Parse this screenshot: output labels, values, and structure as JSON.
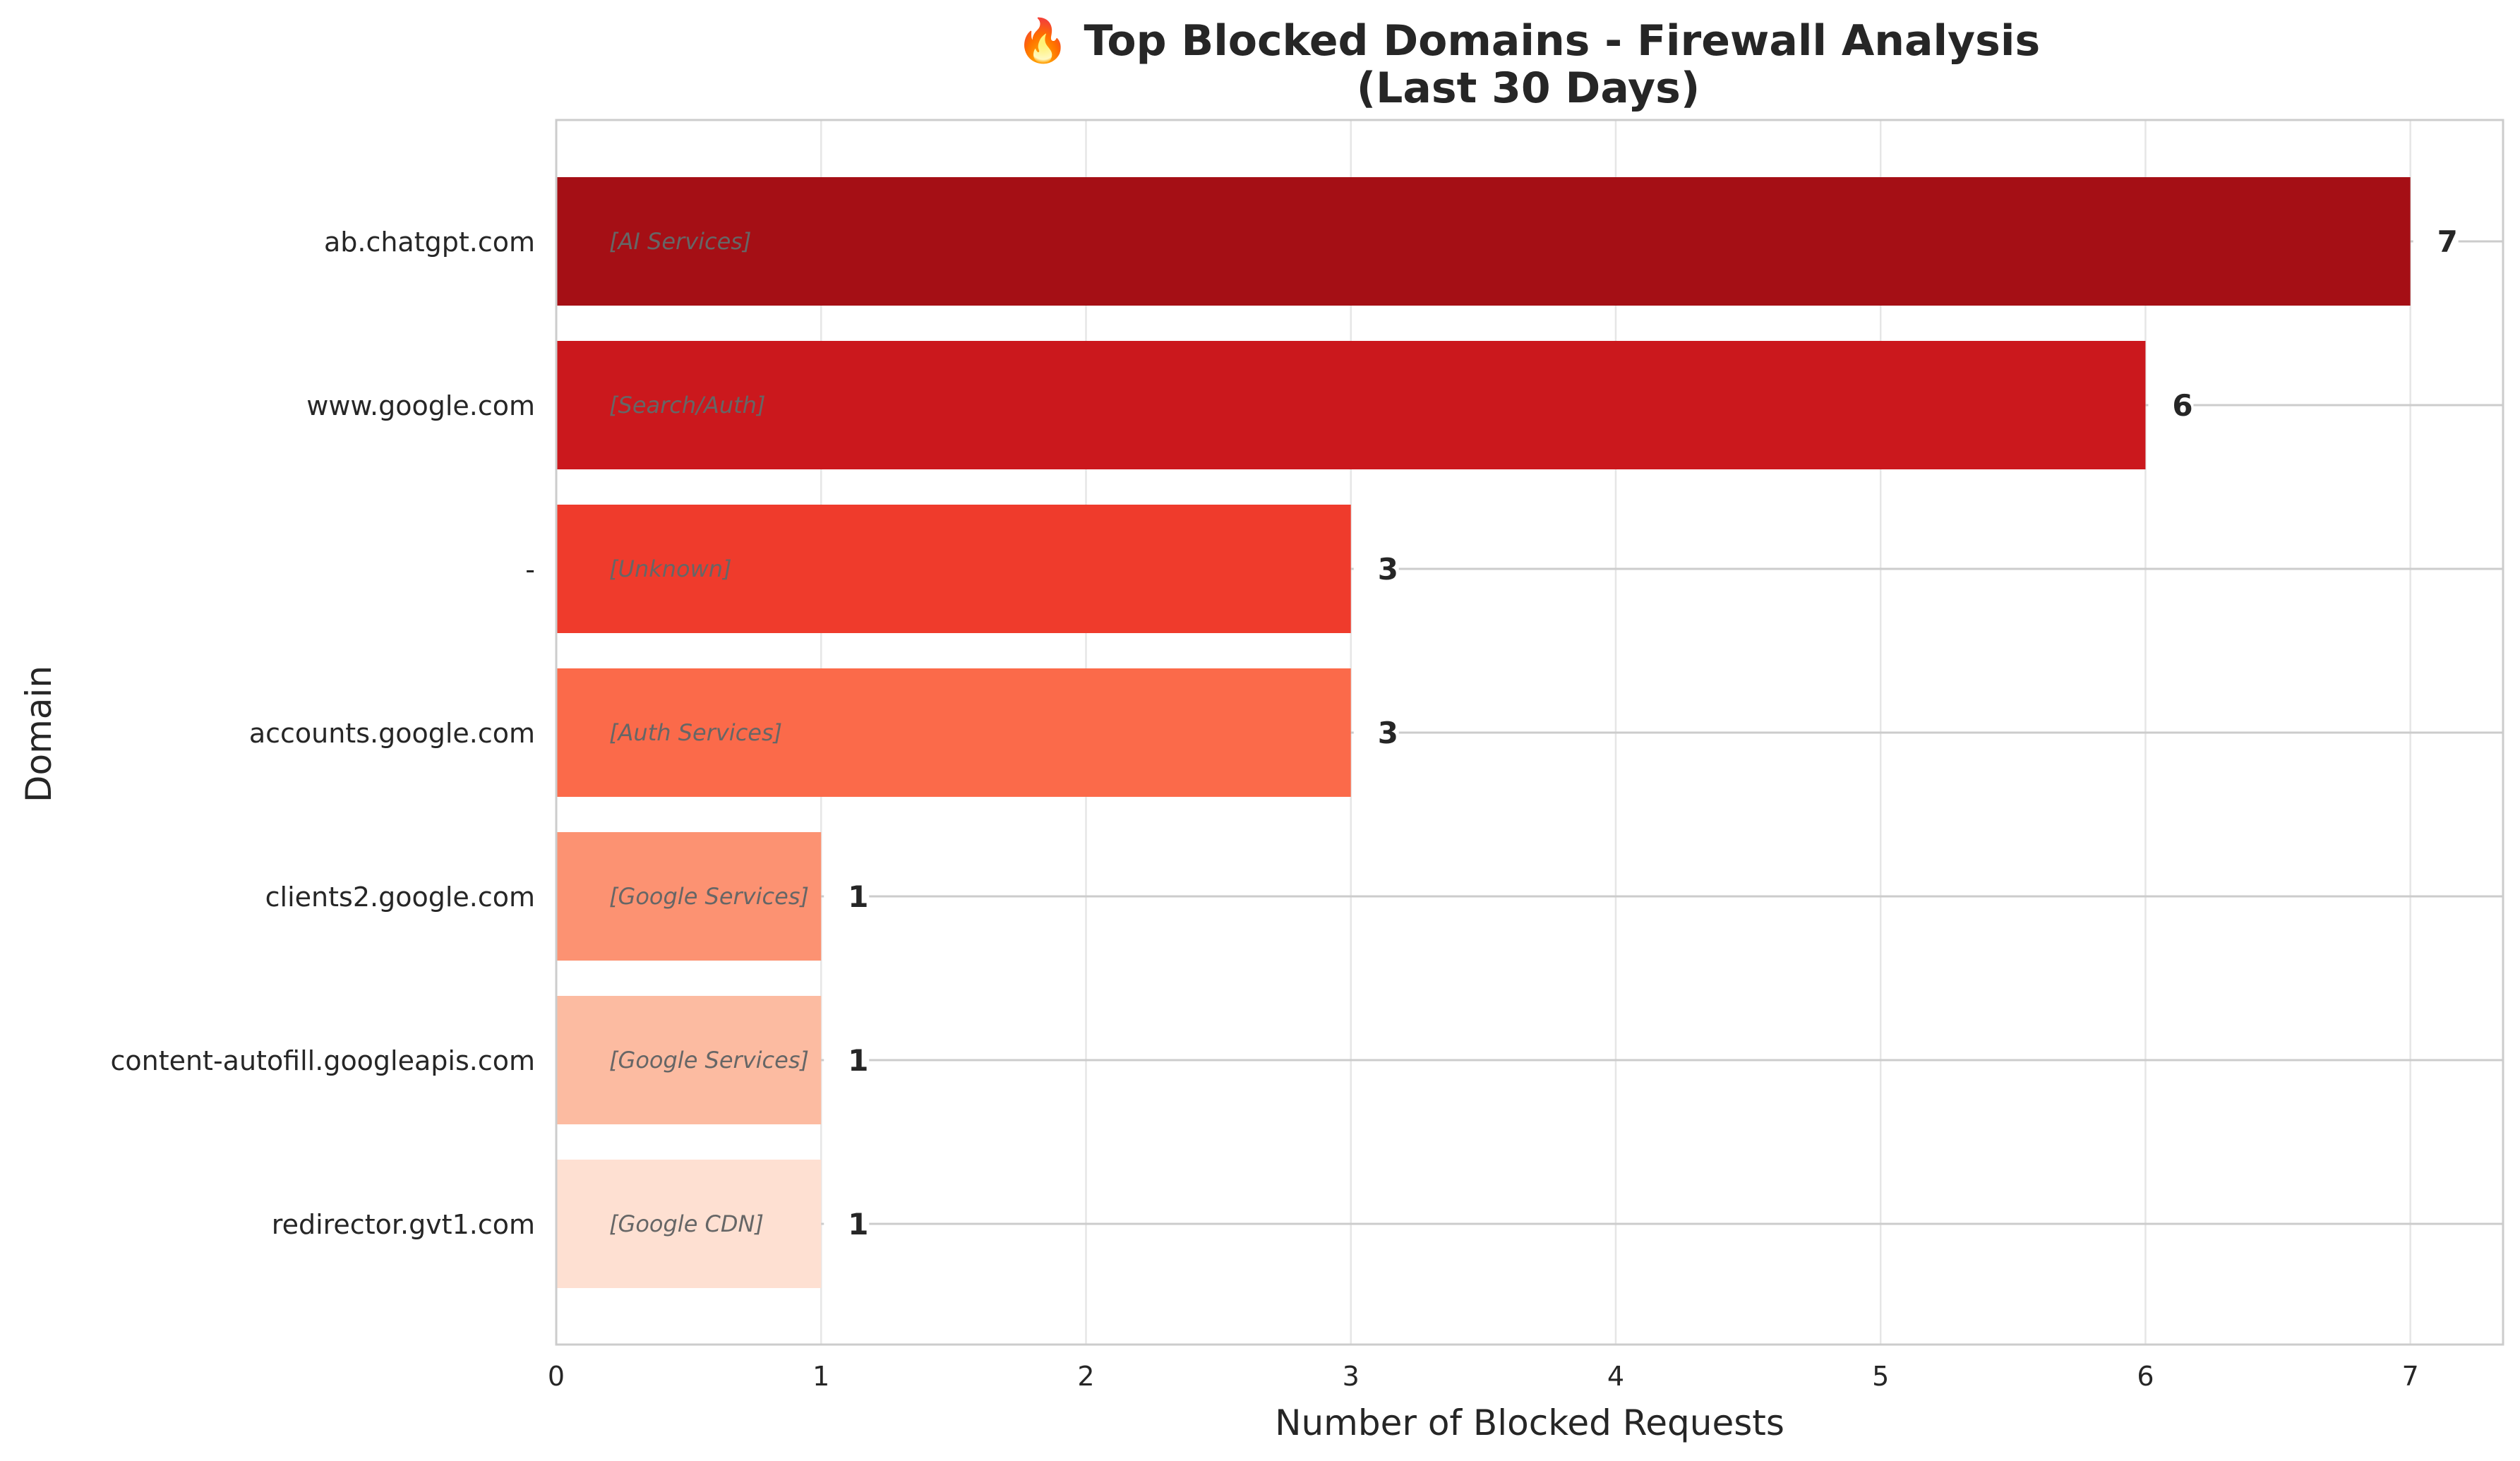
{
  "chart_data": {
    "type": "bar",
    "orientation": "horizontal",
    "title_line1": "🔥 Top Blocked Domains - Firewall Analysis",
    "title_line2": "(Last 30 Days)",
    "xlabel": "Number of Blocked Requests",
    "ylabel": "Domain",
    "xlim": [
      0,
      7.35
    ],
    "xticks": [
      0,
      1,
      2,
      3,
      4,
      5,
      6,
      7
    ],
    "grid": true,
    "bars": [
      {
        "domain": "ab.chatgpt.com",
        "value": 7,
        "category": "[AI Services]",
        "color": "#a50f15"
      },
      {
        "domain": "www.google.com",
        "value": 6,
        "category": "[Search/Auth]",
        "color": "#cb181d"
      },
      {
        "domain": "-",
        "value": 3,
        "category": "[Unknown]",
        "color": "#ef3b2c"
      },
      {
        "domain": "accounts.google.com",
        "value": 3,
        "category": "[Auth Services]",
        "color": "#fb6a4a"
      },
      {
        "domain": "clients2.google.com",
        "value": 1,
        "category": "[Google Services]",
        "color": "#fc9272"
      },
      {
        "domain": "content-autofill.googleapis.com",
        "value": 1,
        "category": "[Google Services]",
        "color": "#fcbba1"
      },
      {
        "domain": "redirector.gvt1.com",
        "value": 1,
        "category": "[Google CDN]",
        "color": "#fee0d2"
      }
    ]
  }
}
